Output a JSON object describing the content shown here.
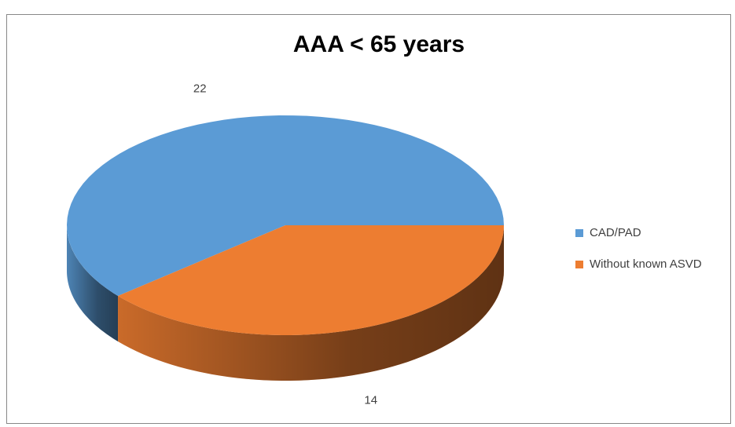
{
  "chart_data": {
    "type": "pie",
    "title": "AAA < 65 years",
    "categories": [
      "CAD/PAD",
      "Without known ASVD"
    ],
    "values": [
      22,
      14
    ],
    "colors": [
      "#5b9bd5",
      "#ed7d31"
    ],
    "legend": "right"
  }
}
